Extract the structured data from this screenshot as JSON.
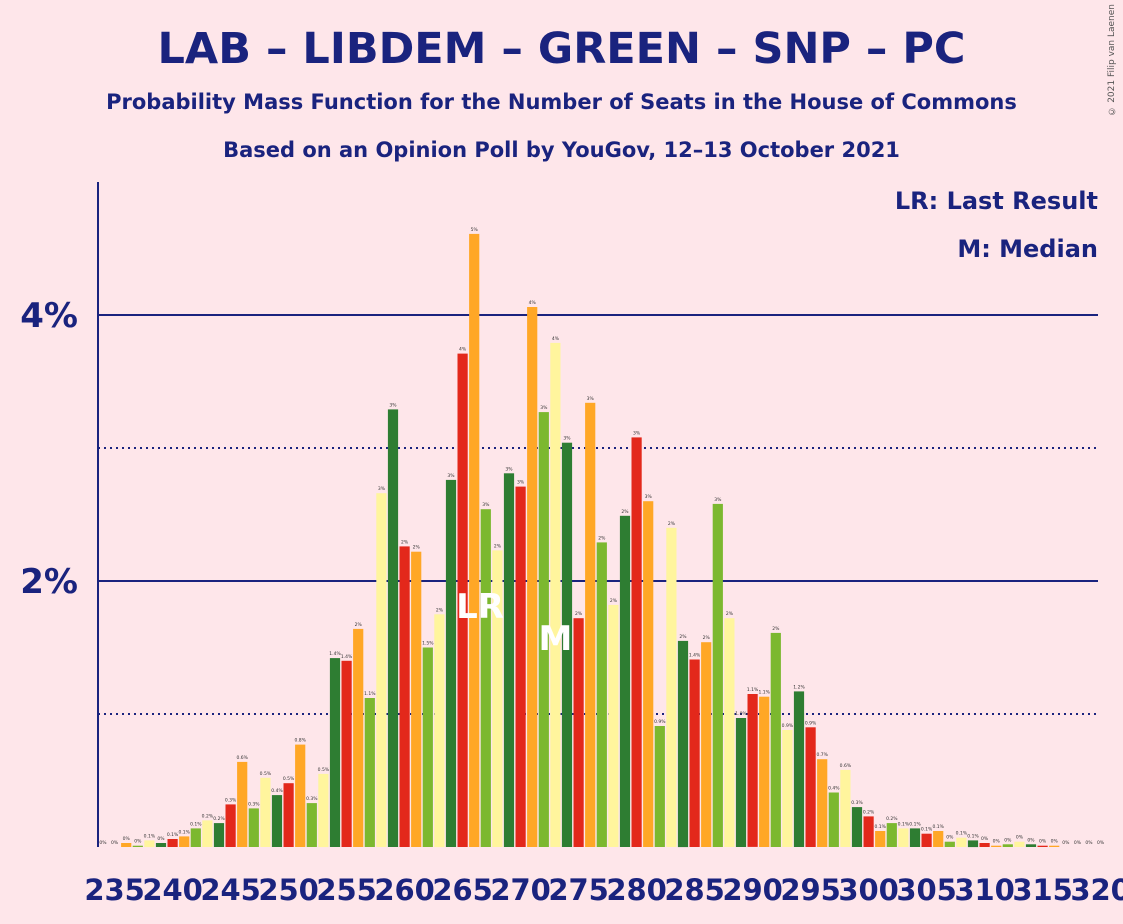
{
  "title": "LAB – LIBDEM – GREEN – SNP – PC",
  "subtitle": "Probability Mass Function for the Number of Seats in the House of Commons",
  "subtitle2": "Based on an Opinion Poll by YouGov, 12–13 October 2021",
  "copyright": "© 2021 Filip van Laenen",
  "legend": {
    "lr": "LR: Last Result",
    "m": "M: Median"
  },
  "colors": [
    "#2E7D32",
    "#E3281B",
    "#FFA726",
    "#7CB82F",
    "#FFF59D"
  ],
  "chart_data": {
    "type": "bar",
    "x": [
      234,
      235,
      236,
      237,
      238,
      239,
      240,
      241,
      242,
      243,
      244,
      245,
      246,
      247,
      248,
      249,
      250,
      251,
      252,
      253,
      254,
      255,
      256,
      257,
      258,
      259,
      260,
      261,
      262,
      263,
      264,
      265,
      266,
      267,
      268,
      269,
      270,
      271,
      272,
      273,
      274,
      275,
      276,
      277,
      278,
      279,
      280,
      281,
      282,
      283,
      284,
      285,
      286,
      287,
      288,
      289,
      290,
      291,
      292,
      293,
      294,
      295,
      296,
      297,
      298,
      299,
      300,
      301,
      302,
      303,
      304,
      305,
      306,
      307,
      308,
      309,
      310,
      311,
      312,
      313,
      314,
      315,
      316,
      317,
      318,
      319,
      320
    ],
    "values": [
      0,
      0,
      0.03,
      0.01,
      0.05,
      0.03,
      0.06,
      0.08,
      0.14,
      0.2,
      0.18,
      0.32,
      0.64,
      0.29,
      0.52,
      0.39,
      0.48,
      0.77,
      0.33,
      0.55,
      1.42,
      1.4,
      1.64,
      1.12,
      2.66,
      3.29,
      2.26,
      2.22,
      1.5,
      1.75,
      2.76,
      3.71,
      4.61,
      2.54,
      2.23,
      2.81,
      2.71,
      4.06,
      3.27,
      3.79,
      3.04,
      1.72,
      3.34,
      2.29,
      1.82,
      2.49,
      3.08,
      2.6,
      0.91,
      2.4,
      1.55,
      1.41,
      1.54,
      2.58,
      1.72,
      0.97,
      1.15,
      1.13,
      1.61,
      0.88,
      1.17,
      0.9,
      0.66,
      0.41,
      0.58,
      0.3,
      0.23,
      0.12,
      0.18,
      0.14,
      0.14,
      0.1,
      0.12,
      0.04,
      0.07,
      0.05,
      0.03,
      0.01,
      0.02,
      0.04,
      0.02,
      0.01,
      0.01,
      0,
      0,
      0,
      0
    ],
    "labels": [
      "0%",
      "0%",
      "0%",
      "0%",
      "0.1%",
      "0%",
      "0.1%",
      "0.1%",
      "0.1%",
      "0.2%",
      "0.2%",
      "0.3%",
      "0.6%",
      "0.3%",
      "0.5%",
      "0.4%",
      "0.5%",
      "0.8%",
      "0.3%",
      "0.5%",
      "1.4%",
      "1.4%",
      "2%",
      "1.1%",
      "3%",
      "3%",
      "2%",
      "2%",
      "1.5%",
      "2%",
      "3%",
      "4%",
      "5%",
      "3%",
      "2%",
      "3%",
      "3%",
      "4%",
      "3%",
      "4%",
      "3%",
      "2%",
      "3%",
      "2%",
      "2%",
      "2%",
      "3%",
      "3%",
      "0.9%",
      "2%",
      "2%",
      "1.4%",
      "2%",
      "3%",
      "2%",
      "1.0%",
      "1.1%",
      "1.1%",
      "2%",
      "0.9%",
      "1.2%",
      "0.9%",
      "0.7%",
      "0.4%",
      "0.6%",
      "0.3%",
      "0.2%",
      "0.1%",
      "0.2%",
      "0.1%",
      "0.1%",
      "0.1%",
      "0.1%",
      "0%",
      "0.1%",
      "0.1%",
      "0%",
      "0%",
      "0%",
      "0%",
      "0%",
      "0%",
      "0%",
      "0%",
      "0%",
      "0%",
      "0%"
    ],
    "yticks": [
      {
        "value": 2,
        "label": "2%"
      },
      {
        "value": 4,
        "label": "4%"
      }
    ],
    "minor_gridlines": [
      1,
      3
    ],
    "xticks": [
      235,
      240,
      245,
      250,
      255,
      260,
      265,
      270,
      275,
      280,
      285,
      290,
      295,
      300,
      305,
      310,
      315,
      320
    ],
    "last_result": 266,
    "median": 273,
    "markers": {
      "lr": "LR",
      "m": "M"
    },
    "ylim": [
      0,
      5
    ]
  }
}
